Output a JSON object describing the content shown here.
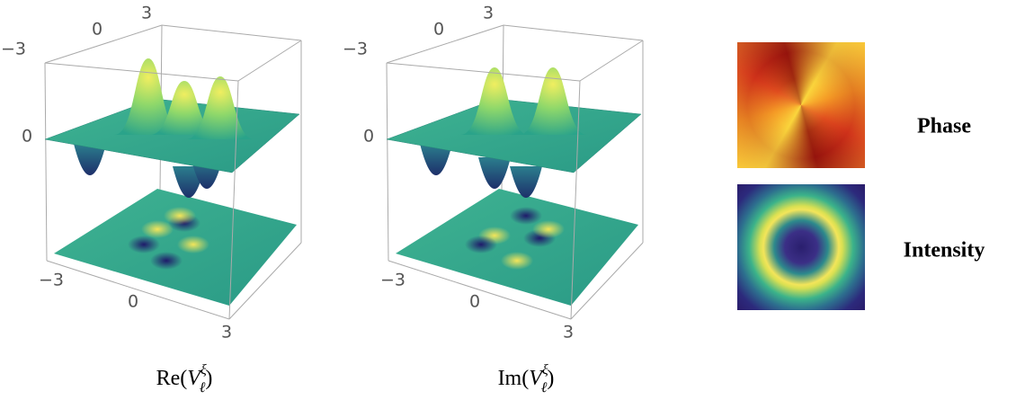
{
  "panels": [
    {
      "caption": {
        "prefix": "Re(",
        "symbol": "V",
        "subscript": "ℓ",
        "superscript": "ξ",
        "suffix": ")"
      },
      "top_ticks": [
        "−3",
        "0",
        "3"
      ],
      "side_tick": "0",
      "bottom_ticks": [
        "−3",
        "0",
        "3"
      ]
    },
    {
      "caption": {
        "prefix": "Im(",
        "symbol": "V",
        "subscript": "ℓ",
        "superscript": "ξ",
        "suffix": ")"
      },
      "top_ticks": [
        "−3",
        "0",
        "3"
      ],
      "side_tick": "0",
      "bottom_ticks": [
        "−3",
        "0",
        "3"
      ]
    }
  ],
  "maps": [
    {
      "label": "Phase"
    },
    {
      "label": "Intensity"
    }
  ]
}
